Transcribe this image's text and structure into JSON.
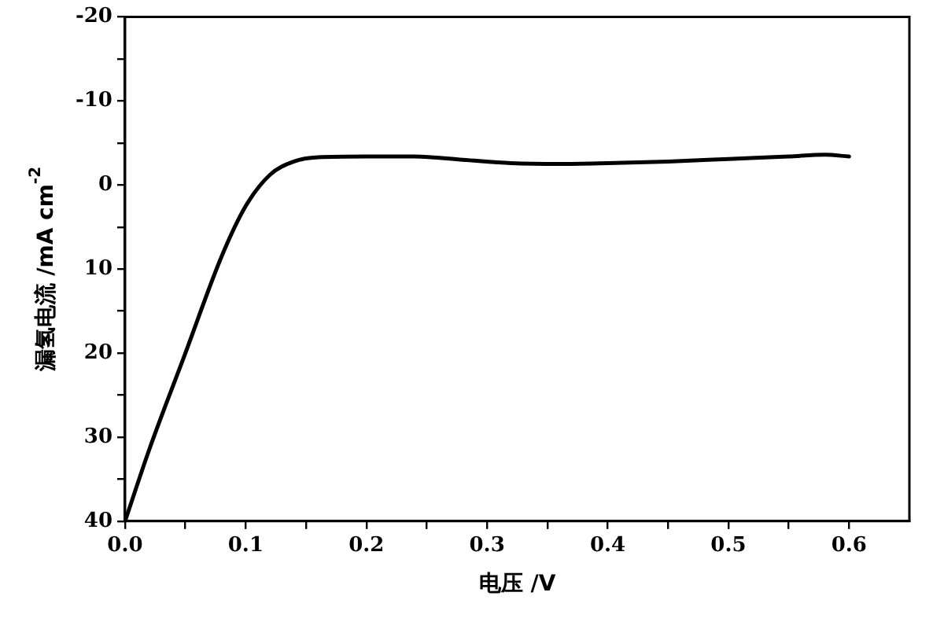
{
  "chart_data": {
    "type": "line",
    "xlabel": "电压 /V",
    "ylabel": "漏氢电流 /mA cm$^{-2}$",
    "x": [
      0,
      0.02,
      0.05,
      0.08,
      0.1,
      0.12,
      0.14,
      0.16,
      0.2,
      0.24,
      0.28,
      0.32,
      0.36,
      0.4,
      0.45,
      0.5,
      0.55,
      0.58,
      0.6
    ],
    "series": [
      {
        "color": "#000000",
        "values": [
          40,
          31.5,
          20,
          8.5,
          2.5,
          -1.2,
          -2.8,
          -3.3,
          -3.4,
          -3.4,
          -3,
          -2.6,
          -2.5,
          -2.6,
          -2.8,
          -3.1,
          -3.4,
          -3.6,
          -3.4
        ]
      }
    ],
    "xlim": [
      0,
      0.65
    ],
    "xticks": [
      {
        "value": 0,
        "label": "0.0"
      },
      {
        "value": 0.05,
        "label": null
      },
      {
        "value": 0.1,
        "label": "0.1"
      },
      {
        "value": 0.15,
        "label": null
      },
      {
        "value": 0.2,
        "label": "0.2"
      },
      {
        "value": 0.25,
        "label": null
      },
      {
        "value": 0.3,
        "label": "0.3"
      },
      {
        "value": 0.35,
        "label": null
      },
      {
        "value": 0.4,
        "label": "0.4"
      },
      {
        "value": 0.45,
        "label": null
      },
      {
        "value": 0.5,
        "label": "0.5"
      },
      {
        "value": 0.55,
        "label": null
      },
      {
        "value": 0.6,
        "label": "0.6"
      }
    ],
    "ylim": [
      40,
      -20
    ],
    "yticks": [
      -20,
      {
        "value": -15,
        "label": null
      },
      -10,
      {
        "value": -5,
        "label": null
      },
      0,
      {
        "value": 5,
        "label": null
      },
      10,
      {
        "value": 15,
        "label": null
      },
      20,
      {
        "value": 25,
        "label": null
      },
      30,
      {
        "value": 35,
        "label": null
      },
      40
    ],
    "grid": false,
    "legend": false,
    "marker": "none",
    "line_style": "solid"
  }
}
